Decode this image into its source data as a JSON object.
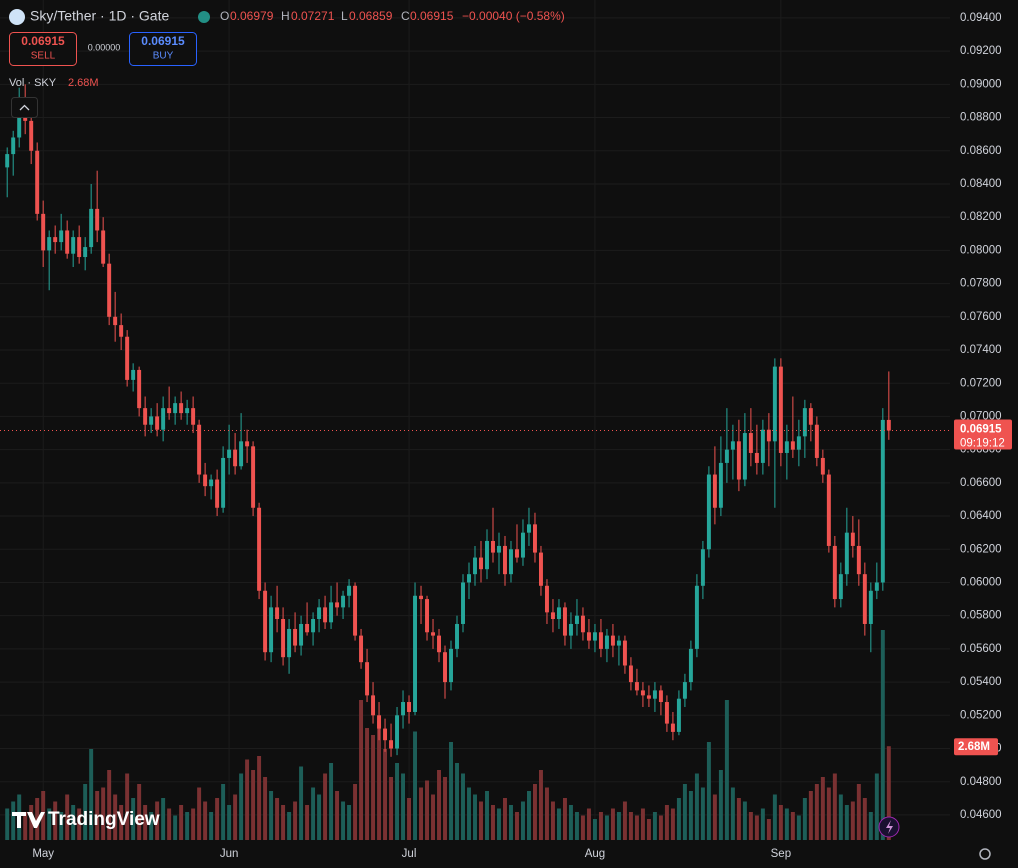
{
  "chart_data": {
    "type": "candlestick",
    "title": "Sky/Tether · 1D · Gate",
    "ohlc_header": [
      {
        "label": "O",
        "value": "0.06979"
      },
      {
        "label": "H",
        "value": "0.07271"
      },
      {
        "label": "L",
        "value": "0.06859"
      },
      {
        "label": "C",
        "value": "0.06915"
      }
    ],
    "change": "−0.00040 (−0.58%)",
    "sell_price": "0.06915",
    "sell_label": "SELL",
    "spread": "0.00000",
    "buy_price": "0.06915",
    "buy_label": "BUY",
    "volume_title": "Vol · SKY",
    "volume_value": "2.68M",
    "last_price": "0.06915",
    "countdown": "09:19:12",
    "watermark": "TradingView",
    "up_color": "#26a69a",
    "down_color": "#ef5350",
    "volume_up_color": "#1d5e58",
    "volume_down_color": "#7a3132",
    "grid": true,
    "xlim": [
      -1.2,
      157.2
    ],
    "xticks": [
      {
        "value": 6,
        "label": "May"
      },
      {
        "value": 37,
        "label": "Jun"
      },
      {
        "value": 67,
        "label": "Jul"
      },
      {
        "value": 98,
        "label": "Aug"
      },
      {
        "value": 129,
        "label": "Sep"
      }
    ],
    "ylim": [
      0.04449,
      0.09508
    ],
    "yticks": [
      {
        "value": 0.046,
        "label": "0.04600"
      },
      {
        "value": 0.048,
        "label": "0.04800"
      },
      {
        "value": 0.05,
        "label": "0.05000"
      },
      {
        "value": 0.052,
        "label": "0.05200"
      },
      {
        "value": 0.054,
        "label": "0.05400"
      },
      {
        "value": 0.056,
        "label": "0.05600"
      },
      {
        "value": 0.058,
        "label": "0.05800"
      },
      {
        "value": 0.06,
        "label": "0.06000"
      },
      {
        "value": 0.062,
        "label": "0.06200"
      },
      {
        "value": 0.064,
        "label": "0.06400"
      },
      {
        "value": 0.066,
        "label": "0.06600"
      },
      {
        "value": 0.068,
        "label": "0.06800"
      },
      {
        "value": 0.07,
        "label": "0.07000"
      },
      {
        "value": 0.072,
        "label": "0.07200"
      },
      {
        "value": 0.074,
        "label": "0.07400"
      },
      {
        "value": 0.076,
        "label": "0.07600"
      },
      {
        "value": 0.078,
        "label": "0.07800"
      },
      {
        "value": 0.08,
        "label": "0.08000"
      },
      {
        "value": 0.082,
        "label": "0.08200"
      },
      {
        "value": 0.084,
        "label": "0.08400"
      },
      {
        "value": 0.086,
        "label": "0.08600"
      },
      {
        "value": 0.088,
        "label": "0.08800"
      },
      {
        "value": 0.09,
        "label": "0.09000"
      },
      {
        "value": 0.092,
        "label": "0.09200"
      },
      {
        "value": 0.094,
        "label": "0.09400"
      }
    ],
    "y2lim": [
      0,
      24
    ],
    "open": [
      0.085,
      0.0858,
      0.0868,
      0.0888,
      0.0878,
      0.086,
      0.0822,
      0.08,
      0.0808,
      0.0805,
      0.0812,
      0.0798,
      0.0808,
      0.0796,
      0.0802,
      0.0825,
      0.0812,
      0.0792,
      0.076,
      0.0755,
      0.0748,
      0.0722,
      0.0728,
      0.0705,
      0.0695,
      0.07,
      0.0692,
      0.0705,
      0.0702,
      0.0708,
      0.0702,
      0.0705,
      0.0695,
      0.0665,
      0.0658,
      0.0662,
      0.0645,
      0.0675,
      0.068,
      0.067,
      0.0685,
      0.0682,
      0.0645,
      0.0595,
      0.0558,
      0.0585,
      0.0578,
      0.0555,
      0.0572,
      0.0562,
      0.0575,
      0.057,
      0.0578,
      0.0585,
      0.0576,
      0.0588,
      0.0585,
      0.0592,
      0.0598,
      0.0568,
      0.0552,
      0.0532,
      0.052,
      0.0512,
      0.0505,
      0.05,
      0.052,
      0.0528,
      0.0522,
      0.0592,
      0.059,
      0.057,
      0.0568,
      0.0558,
      0.054,
      0.056,
      0.0575,
      0.06,
      0.0605,
      0.0615,
      0.0608,
      0.0625,
      0.0618,
      0.0622,
      0.0605,
      0.062,
      0.0615,
      0.063,
      0.0635,
      0.0618,
      0.0598,
      0.0582,
      0.0578,
      0.0585,
      0.0568,
      0.0575,
      0.058,
      0.057,
      0.0565,
      0.057,
      0.056,
      0.0568,
      0.0562,
      0.0565,
      0.055,
      0.054,
      0.0535,
      0.0532,
      0.053,
      0.0535,
      0.0528,
      0.0515,
      0.051,
      0.053,
      0.054,
      0.056,
      0.0598,
      0.062,
      0.0665,
      0.0645,
      0.0672,
      0.068,
      0.0685,
      0.0662,
      0.069,
      0.0678,
      0.0672,
      0.0692,
      0.0685,
      0.073,
      0.0678,
      0.0685,
      0.068,
      0.0688,
      0.0705,
      0.0695,
      0.0675,
      0.0665,
      0.0622,
      0.059,
      0.0605,
      0.063,
      0.0622,
      0.0605,
      0.0575,
      0.0595,
      0.06,
      0.06979
    ],
    "high": [
      0.0862,
      0.0872,
      0.0898,
      0.09,
      0.0885,
      0.0865,
      0.083,
      0.0812,
      0.0815,
      0.0822,
      0.0818,
      0.0812,
      0.0815,
      0.0808,
      0.084,
      0.0848,
      0.082,
      0.0798,
      0.0775,
      0.0762,
      0.0752,
      0.0732,
      0.073,
      0.0712,
      0.0705,
      0.0708,
      0.0712,
      0.0718,
      0.0712,
      0.0715,
      0.071,
      0.0712,
      0.0698,
      0.0672,
      0.0665,
      0.0668,
      0.0682,
      0.0695,
      0.069,
      0.0702,
      0.0692,
      0.0685,
      0.0648,
      0.06,
      0.0592,
      0.0598,
      0.0585,
      0.0578,
      0.0582,
      0.058,
      0.0588,
      0.0582,
      0.059,
      0.0592,
      0.0598,
      0.06,
      0.0595,
      0.0602,
      0.06,
      0.0572,
      0.056,
      0.054,
      0.0528,
      0.0518,
      0.0515,
      0.0525,
      0.0535,
      0.0532,
      0.06,
      0.0598,
      0.0592,
      0.0578,
      0.0572,
      0.0562,
      0.0565,
      0.058,
      0.0605,
      0.0612,
      0.0622,
      0.0625,
      0.0632,
      0.0645,
      0.063,
      0.0628,
      0.0625,
      0.0635,
      0.0638,
      0.0645,
      0.0642,
      0.0622,
      0.0602,
      0.059,
      0.059,
      0.0588,
      0.0582,
      0.059,
      0.0585,
      0.0578,
      0.0575,
      0.0578,
      0.0572,
      0.0575,
      0.0568,
      0.0568,
      0.0555,
      0.0548,
      0.054,
      0.0538,
      0.054,
      0.0538,
      0.0532,
      0.0522,
      0.0535,
      0.0545,
      0.0565,
      0.0605,
      0.0625,
      0.067,
      0.0682,
      0.0688,
      0.0705,
      0.0695,
      0.0698,
      0.0702,
      0.0705,
      0.0695,
      0.0698,
      0.0702,
      0.0735,
      0.0735,
      0.0695,
      0.0712,
      0.0698,
      0.071,
      0.0708,
      0.07,
      0.068,
      0.0668,
      0.0628,
      0.0612,
      0.0645,
      0.064,
      0.0638,
      0.0612,
      0.06,
      0.0612,
      0.0705,
      0.07271
    ],
    "low": [
      0.0832,
      0.0845,
      0.0862,
      0.087,
      0.0852,
      0.0818,
      0.079,
      0.0776,
      0.0798,
      0.08,
      0.0795,
      0.079,
      0.0792,
      0.0788,
      0.0798,
      0.0805,
      0.079,
      0.0755,
      0.0745,
      0.074,
      0.0718,
      0.0715,
      0.07,
      0.0688,
      0.069,
      0.0688,
      0.0685,
      0.0698,
      0.0695,
      0.0698,
      0.0695,
      0.069,
      0.066,
      0.0652,
      0.065,
      0.064,
      0.0642,
      0.0665,
      0.0665,
      0.0668,
      0.0672,
      0.064,
      0.059,
      0.0553,
      0.0552,
      0.057,
      0.055,
      0.0545,
      0.0558,
      0.0556,
      0.0568,
      0.0562,
      0.057,
      0.0572,
      0.0572,
      0.058,
      0.0578,
      0.0585,
      0.0565,
      0.0548,
      0.0528,
      0.0515,
      0.0505,
      0.0498,
      0.0495,
      0.0496,
      0.0512,
      0.0515,
      0.052,
      0.0575,
      0.0565,
      0.056,
      0.0552,
      0.053,
      0.0535,
      0.0555,
      0.057,
      0.059,
      0.0598,
      0.06,
      0.0602,
      0.0612,
      0.0605,
      0.0598,
      0.06,
      0.0612,
      0.061,
      0.0622,
      0.0612,
      0.0592,
      0.0575,
      0.057,
      0.0572,
      0.0562,
      0.056,
      0.0568,
      0.0565,
      0.056,
      0.0558,
      0.0555,
      0.0552,
      0.0555,
      0.055,
      0.0545,
      0.0535,
      0.0532,
      0.0525,
      0.0525,
      0.0522,
      0.052,
      0.051,
      0.0505,
      0.0508,
      0.0525,
      0.0535,
      0.0555,
      0.059,
      0.0615,
      0.0635,
      0.064,
      0.066,
      0.0662,
      0.0655,
      0.0658,
      0.067,
      0.0665,
      0.0665,
      0.067,
      0.0645,
      0.067,
      0.0662,
      0.0675,
      0.067,
      0.0675,
      0.0685,
      0.067,
      0.066,
      0.0618,
      0.0585,
      0.0585,
      0.0598,
      0.0615,
      0.0598,
      0.0568,
      0.0558,
      0.059,
      0.0595,
      0.06859
    ],
    "close": [
      0.0858,
      0.0868,
      0.0888,
      0.0878,
      0.086,
      0.0822,
      0.08,
      0.0808,
      0.0805,
      0.0812,
      0.0798,
      0.0808,
      0.0796,
      0.0802,
      0.0825,
      0.0812,
      0.0792,
      0.076,
      0.0755,
      0.0748,
      0.0722,
      0.0728,
      0.0705,
      0.0695,
      0.07,
      0.0692,
      0.0705,
      0.0702,
      0.0708,
      0.0702,
      0.0705,
      0.0695,
      0.0665,
      0.0658,
      0.0662,
      0.0645,
      0.0675,
      0.068,
      0.067,
      0.0685,
      0.0682,
      0.0645,
      0.0595,
      0.0558,
      0.0585,
      0.0578,
      0.0555,
      0.0572,
      0.0562,
      0.0575,
      0.057,
      0.0578,
      0.0585,
      0.0576,
      0.0588,
      0.0585,
      0.0592,
      0.0598,
      0.0568,
      0.0552,
      0.0532,
      0.052,
      0.0512,
      0.0505,
      0.05,
      0.052,
      0.0528,
      0.0522,
      0.0592,
      0.059,
      0.057,
      0.0568,
      0.0558,
      0.054,
      0.056,
      0.0575,
      0.06,
      0.0605,
      0.0615,
      0.0608,
      0.0625,
      0.0618,
      0.0622,
      0.0605,
      0.062,
      0.0615,
      0.063,
      0.0635,
      0.0618,
      0.0598,
      0.0582,
      0.0578,
      0.0585,
      0.0568,
      0.0575,
      0.058,
      0.057,
      0.0565,
      0.057,
      0.056,
      0.0568,
      0.0562,
      0.0565,
      0.055,
      0.054,
      0.0535,
      0.0532,
      0.053,
      0.0535,
      0.0528,
      0.0515,
      0.051,
      0.053,
      0.054,
      0.056,
      0.0598,
      0.062,
      0.0665,
      0.0645,
      0.0672,
      0.068,
      0.0685,
      0.0662,
      0.069,
      0.0678,
      0.0672,
      0.0692,
      0.0685,
      0.073,
      0.0678,
      0.0685,
      0.068,
      0.0688,
      0.0705,
      0.0695,
      0.0675,
      0.0665,
      0.0622,
      0.059,
      0.0605,
      0.063,
      0.0622,
      0.0605,
      0.0575,
      0.0595,
      0.06,
      0.06979,
      0.06915
    ],
    "volume": [
      0.9,
      1.1,
      1.3,
      0.8,
      1.0,
      1.2,
      1.4,
      0.9,
      1.1,
      0.8,
      1.3,
      1.0,
      0.9,
      1.6,
      2.6,
      1.4,
      1.5,
      2.0,
      1.3,
      1.0,
      1.9,
      1.2,
      1.6,
      1.0,
      0.8,
      1.1,
      1.2,
      0.9,
      0.7,
      1.0,
      0.8,
      0.9,
      1.5,
      1.1,
      0.8,
      1.2,
      1.6,
      1.0,
      1.3,
      1.9,
      2.3,
      2.0,
      2.4,
      1.8,
      1.4,
      1.2,
      1.0,
      0.8,
      1.1,
      2.1,
      1.0,
      1.5,
      1.3,
      1.9,
      2.2,
      1.4,
      1.1,
      1.0,
      1.6,
      4.0,
      3.2,
      3.0,
      3.4,
      2.6,
      1.8,
      2.2,
      1.9,
      1.2,
      3.1,
      1.5,
      1.7,
      1.3,
      2.0,
      1.8,
      2.8,
      2.2,
      1.9,
      1.5,
      1.3,
      1.1,
      1.4,
      1.0,
      0.9,
      1.2,
      1.0,
      0.8,
      1.1,
      1.4,
      1.6,
      2.0,
      1.5,
      1.1,
      0.9,
      1.2,
      1.0,
      0.8,
      0.7,
      0.9,
      0.6,
      0.8,
      0.7,
      0.9,
      0.8,
      1.1,
      0.8,
      0.7,
      0.9,
      0.6,
      0.8,
      0.7,
      1.0,
      0.9,
      1.2,
      1.6,
      1.4,
      1.9,
      1.5,
      2.8,
      1.3,
      2.0,
      4.0,
      1.5,
      1.2,
      1.1,
      0.8,
      0.7,
      0.9,
      0.6,
      1.3,
      1.0,
      0.9,
      0.8,
      0.7,
      1.2,
      1.4,
      1.6,
      1.8,
      1.5,
      1.9,
      1.3,
      1.0,
      1.1,
      1.6,
      1.2,
      0.8,
      1.9,
      6.0,
      2.68
    ]
  }
}
